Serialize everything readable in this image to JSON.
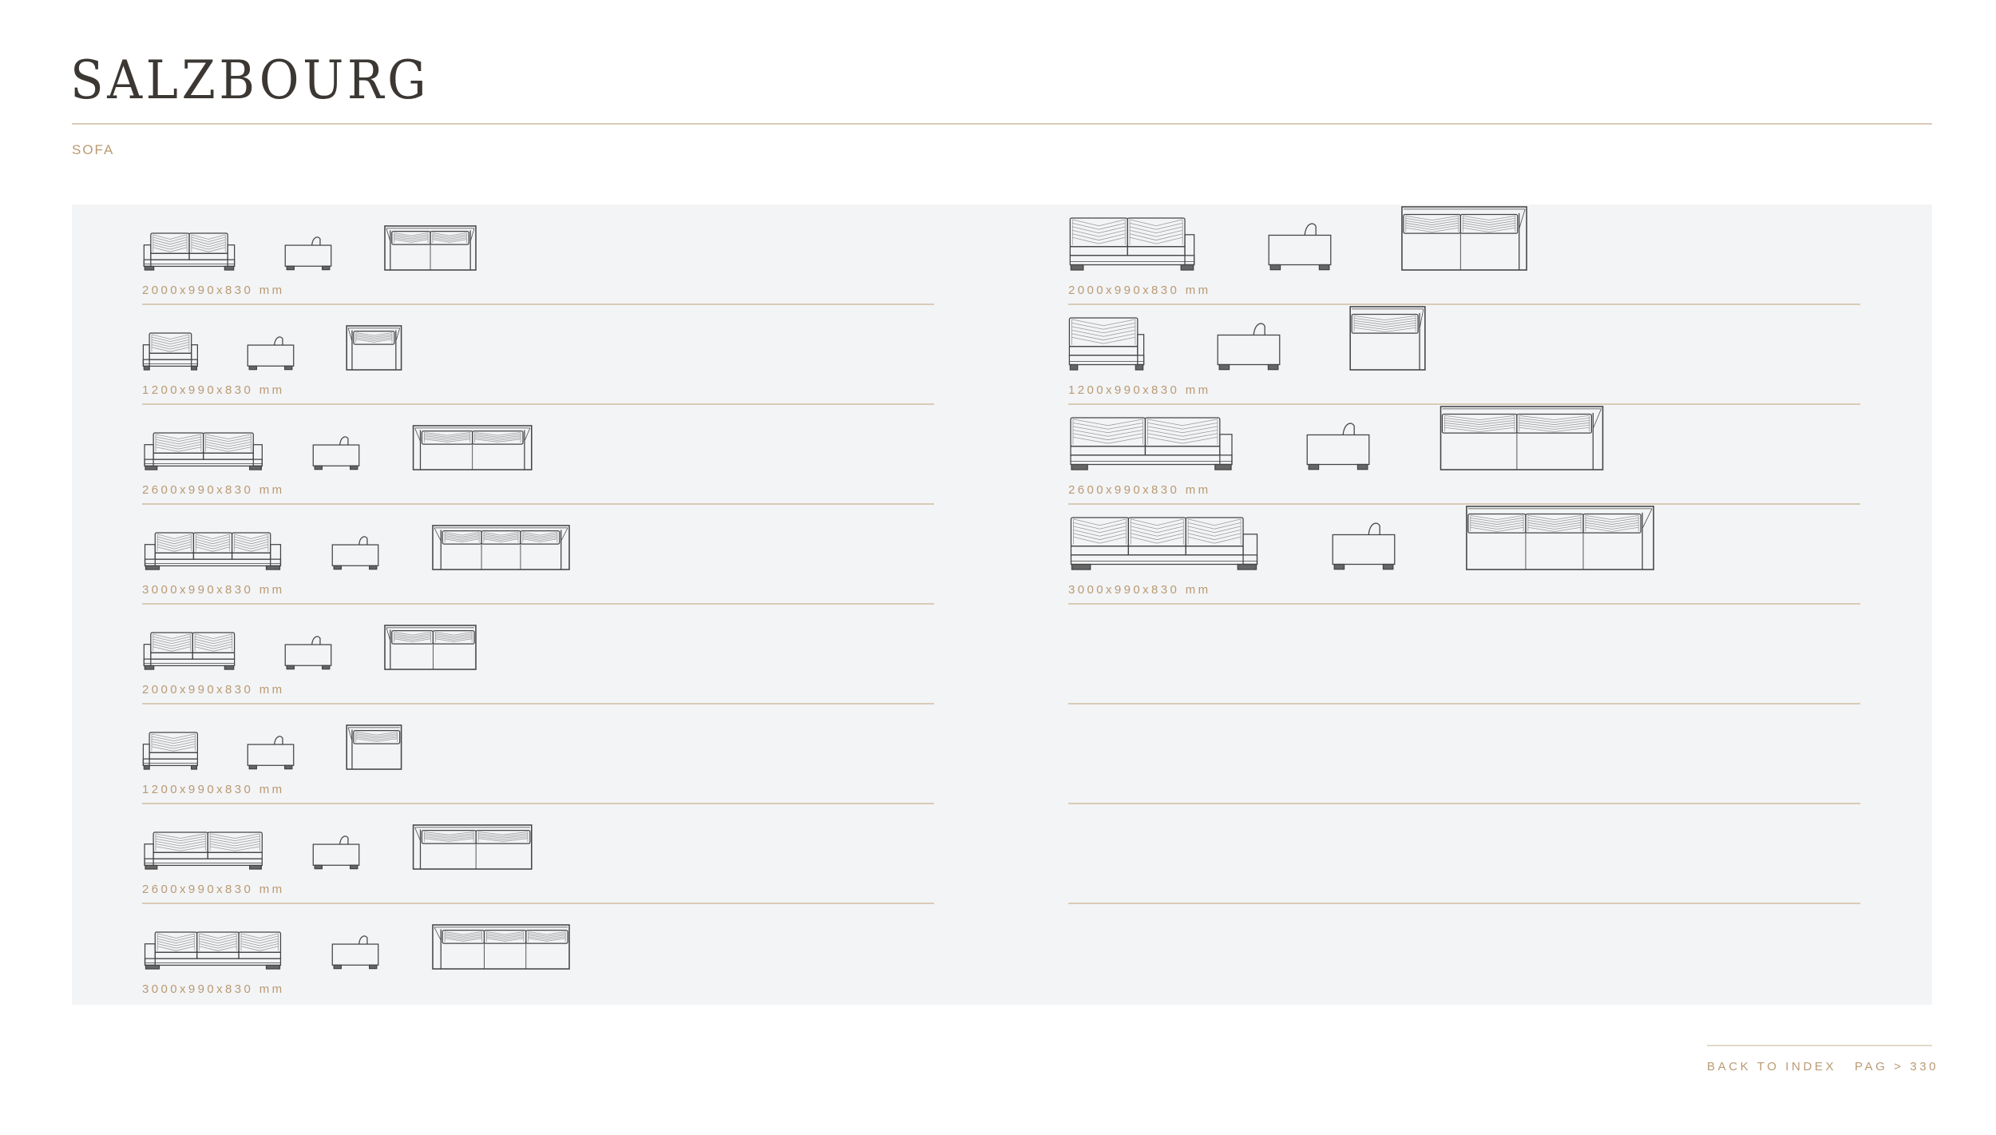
{
  "header": {
    "title": "SALZBOURG",
    "subtitle": "SOFA"
  },
  "colors": {
    "accent": "#b99a72",
    "rule": "#d9cbb6",
    "panel": "#f3f4f6",
    "title": "#3b3733",
    "line": "#444444"
  },
  "columns": [
    {
      "rows": [
        {
          "dims": "2000x990x830 mm",
          "seats": 2,
          "arms": "both",
          "length_mm": 2000
        },
        {
          "dims": "1200x990x830 mm",
          "seats": 1,
          "arms": "both",
          "length_mm": 1200
        },
        {
          "dims": "2600x990x830 mm",
          "seats": 2,
          "arms": "both",
          "length_mm": 2600
        },
        {
          "dims": "3000x990x830 mm",
          "seats": 3,
          "arms": "both",
          "length_mm": 3000
        },
        {
          "dims": "2000x990x830 mm",
          "seats": 2,
          "arms": "left",
          "length_mm": 2000
        },
        {
          "dims": "1200x990x830 mm",
          "seats": 1,
          "arms": "left",
          "length_mm": 1200
        },
        {
          "dims": "2600x990x830 mm",
          "seats": 2,
          "arms": "left",
          "length_mm": 2600
        },
        {
          "dims": "3000x990x830 mm",
          "seats": 3,
          "arms": "left",
          "length_mm": 3000
        }
      ]
    },
    {
      "rows": [
        {
          "dims": "2000x990x830 mm",
          "seats": 2,
          "arms": "right",
          "length_mm": 2000
        },
        {
          "dims": "1200x990x830 mm",
          "seats": 1,
          "arms": "right",
          "length_mm": 1200
        },
        {
          "dims": "2600x990x830 mm",
          "seats": 2,
          "arms": "right",
          "length_mm": 2600
        },
        {
          "dims": "3000x990x830 mm",
          "seats": 3,
          "arms": "right",
          "length_mm": 3000
        },
        {
          "dims": ""
        },
        {
          "dims": ""
        },
        {
          "dims": ""
        }
      ]
    }
  ],
  "footer": {
    "back_label": "BACK TO INDEX",
    "page_label": "PAG > 330"
  }
}
